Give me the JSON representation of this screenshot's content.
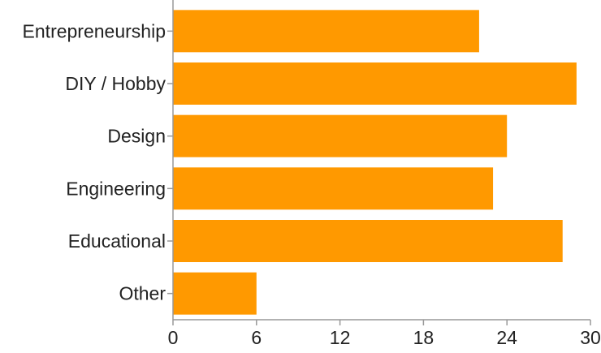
{
  "chart_data": {
    "type": "bar",
    "orientation": "horizontal",
    "categories": [
      "Entrepreneurship",
      "DIY / Hobby",
      "Design",
      "Engineering",
      "Educational",
      "Other"
    ],
    "values": [
      22,
      29,
      24,
      23,
      28,
      6
    ],
    "xlim": [
      0,
      30
    ],
    "xticks": [
      "0",
      "6",
      "12",
      "18",
      "24",
      "30"
    ],
    "grid": false,
    "bar_color": "#ff9900",
    "axis_color": "#999999",
    "text_color": "#222222"
  }
}
